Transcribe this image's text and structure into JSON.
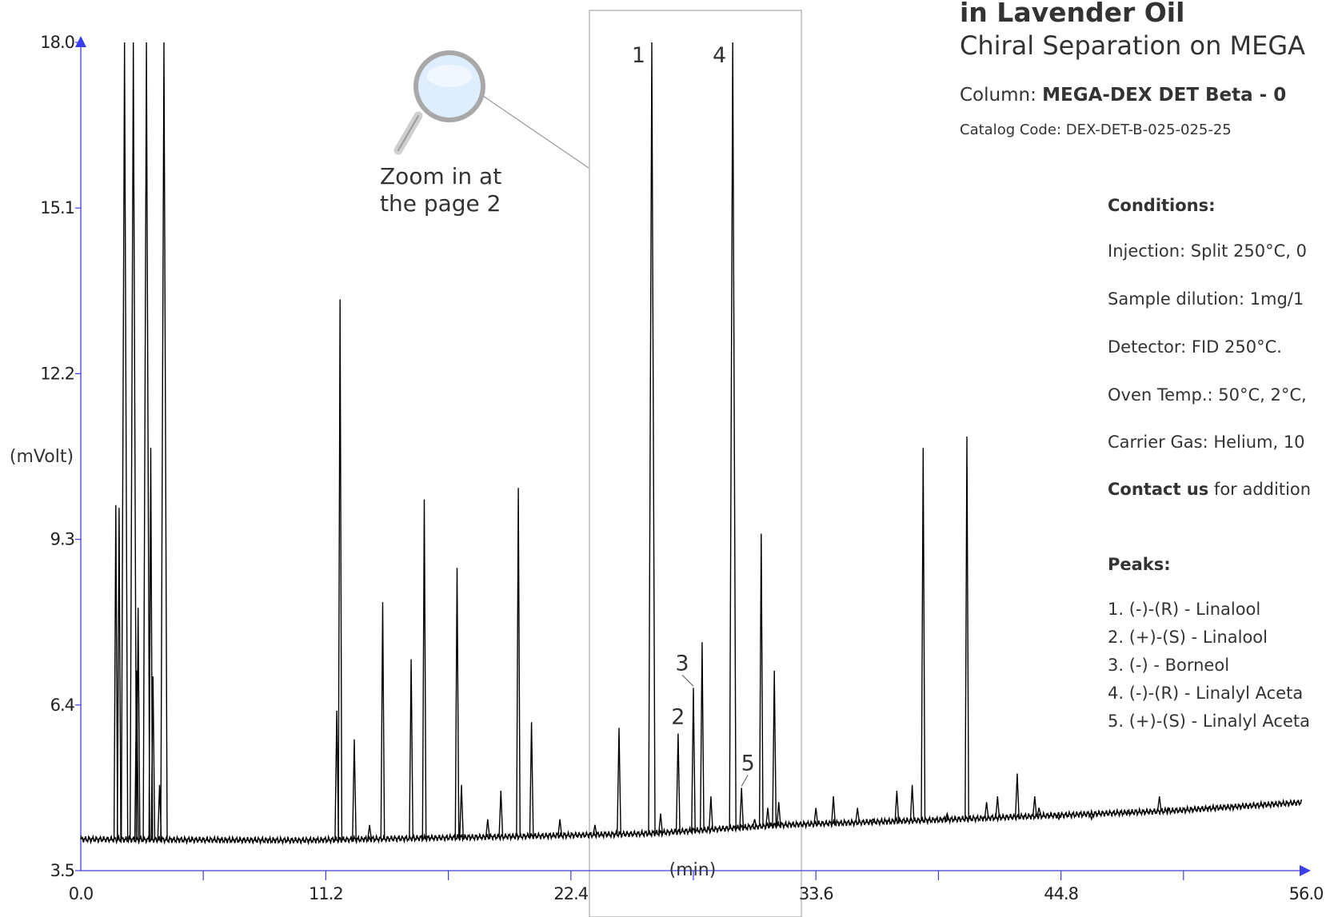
{
  "colors": {
    "axis": "#3d3df0",
    "trace": "#000000",
    "box": "#aaaaaa",
    "text": "#333333"
  },
  "header": {
    "title_line1": "in Lavender Oil",
    "title_line2": "Chiral Separation on MEGA",
    "column_label": "Column:",
    "column_value": "MEGA-DEX DET Beta - 0",
    "catalog": "Catalog Code: DEX-DET-B-025-025-25"
  },
  "conditions": {
    "heading": "Conditions:",
    "items": [
      "Injection: Split 250°C, 0",
      "Sample dilution: 1mg/1",
      "Detector: FID 250°C.",
      "Oven Temp.: 50°C, 2°C,",
      "Carrier Gas: Helium, 10"
    ],
    "contact_bold": "Contact us",
    "contact_rest": " for addition"
  },
  "peaks": {
    "heading": "Peaks:",
    "items": [
      "1. (-)-(R) - Linalool",
      "2. (+)-(S) - Linalool",
      "3. (-) - Borneol",
      "4. (-)-(R) - Linalyl Aceta",
      "5. (+)-(S) - Linalyl Aceta"
    ]
  },
  "zoom_note": {
    "line1": "Zoom in at",
    "line2": "the page 2",
    "icon": "magnifier-icon"
  },
  "chart_data": {
    "type": "line",
    "xlabel": "(min)",
    "ylabel": "(mVolt)",
    "xlim": [
      0,
      56
    ],
    "ylim": [
      3.5,
      18.0
    ],
    "x_ticks": [
      "0.0",
      "11.2",
      "22.4",
      "33.6",
      "44.8",
      "56.0"
    ],
    "y_ticks": [
      "3.5",
      "6.4",
      "9.3",
      "12.2",
      "15.1",
      "18.0"
    ],
    "baseline": [
      [
        0,
        4.05
      ],
      [
        10,
        4.03
      ],
      [
        20,
        4.1
      ],
      [
        26,
        4.15
      ],
      [
        32,
        4.3
      ],
      [
        40,
        4.4
      ],
      [
        50,
        4.55
      ],
      [
        56,
        4.7
      ]
    ],
    "peaks": [
      {
        "t": 1.6,
        "h": 9.9
      },
      {
        "t": 1.75,
        "h": 9.85
      },
      {
        "t": 2.0,
        "h": 18.0
      },
      {
        "t": 2.4,
        "h": 18.0
      },
      {
        "t": 2.55,
        "h": 7.0
      },
      {
        "t": 2.62,
        "h": 8.1
      },
      {
        "t": 3.0,
        "h": 18.0
      },
      {
        "t": 3.2,
        "h": 10.9
      },
      {
        "t": 3.3,
        "h": 6.9
      },
      {
        "t": 3.6,
        "h": 5.0
      },
      {
        "t": 3.8,
        "h": 18.0
      },
      {
        "t": 11.7,
        "h": 6.3
      },
      {
        "t": 11.85,
        "h": 13.5
      },
      {
        "t": 12.5,
        "h": 5.8
      },
      {
        "t": 13.2,
        "h": 4.3
      },
      {
        "t": 13.8,
        "h": 8.2
      },
      {
        "t": 15.1,
        "h": 7.2
      },
      {
        "t": 15.7,
        "h": 10.0
      },
      {
        "t": 17.2,
        "h": 8.8
      },
      {
        "t": 17.4,
        "h": 5.0
      },
      {
        "t": 18.6,
        "h": 4.4
      },
      {
        "t": 19.2,
        "h": 4.9
      },
      {
        "t": 20.0,
        "h": 10.2
      },
      {
        "t": 20.6,
        "h": 6.1
      },
      {
        "t": 21.9,
        "h": 4.4
      },
      {
        "t": 23.5,
        "h": 4.3
      },
      {
        "t": 24.6,
        "h": 6.0
      },
      {
        "t": 26.1,
        "h": 18.0,
        "label": "1"
      },
      {
        "t": 26.5,
        "h": 4.5
      },
      {
        "t": 27.3,
        "h": 5.9,
        "label": "2"
      },
      {
        "t": 28.0,
        "h": 6.7,
        "label": "3"
      },
      {
        "t": 28.4,
        "h": 7.5
      },
      {
        "t": 28.8,
        "h": 4.8
      },
      {
        "t": 29.8,
        "h": 18.0,
        "label": "4"
      },
      {
        "t": 30.2,
        "h": 4.95,
        "label": "5"
      },
      {
        "t": 30.8,
        "h": 4.4
      },
      {
        "t": 31.1,
        "h": 9.4
      },
      {
        "t": 31.4,
        "h": 4.6
      },
      {
        "t": 31.7,
        "h": 7.0
      },
      {
        "t": 31.9,
        "h": 4.7
      },
      {
        "t": 33.6,
        "h": 4.6
      },
      {
        "t": 34.4,
        "h": 4.8
      },
      {
        "t": 35.5,
        "h": 4.6
      },
      {
        "t": 36.2,
        "h": 4.4
      },
      {
        "t": 37.3,
        "h": 4.9
      },
      {
        "t": 38.0,
        "h": 5.0
      },
      {
        "t": 38.5,
        "h": 10.9
      },
      {
        "t": 39.6,
        "h": 4.5
      },
      {
        "t": 40.5,
        "h": 11.1
      },
      {
        "t": 41.4,
        "h": 4.7
      },
      {
        "t": 41.9,
        "h": 4.8
      },
      {
        "t": 42.8,
        "h": 5.2
      },
      {
        "t": 43.6,
        "h": 4.8
      },
      {
        "t": 43.8,
        "h": 4.6
      },
      {
        "t": 44.7,
        "h": 4.4
      },
      {
        "t": 46.2,
        "h": 4.4
      },
      {
        "t": 47.9,
        "h": 4.5
      },
      {
        "t": 49.3,
        "h": 4.8
      },
      {
        "t": 49.7,
        "h": 4.6
      },
      {
        "t": 51.5,
        "h": 4.6
      }
    ]
  }
}
